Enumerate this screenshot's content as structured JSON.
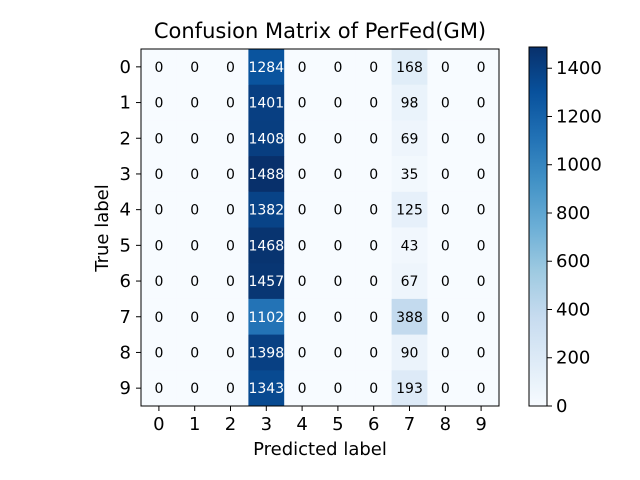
{
  "chart_data": {
    "type": "heatmap",
    "title": "Confusion Matrix of PerFed(GM)",
    "xlabel": "Predicted label",
    "ylabel": "True label",
    "x_tick_labels": [
      "0",
      "1",
      "2",
      "3",
      "4",
      "5",
      "6",
      "7",
      "8",
      "9"
    ],
    "y_tick_labels": [
      "0",
      "1",
      "2",
      "3",
      "4",
      "5",
      "6",
      "7",
      "8",
      "9"
    ],
    "matrix": [
      [
        0,
        0,
        0,
        1284,
        0,
        0,
        0,
        168,
        0,
        0
      ],
      [
        0,
        0,
        0,
        1401,
        0,
        0,
        0,
        98,
        0,
        0
      ],
      [
        0,
        0,
        0,
        1408,
        0,
        0,
        0,
        69,
        0,
        0
      ],
      [
        0,
        0,
        0,
        1488,
        0,
        0,
        0,
        35,
        0,
        0
      ],
      [
        0,
        0,
        0,
        1382,
        0,
        0,
        0,
        125,
        0,
        0
      ],
      [
        0,
        0,
        0,
        1468,
        0,
        0,
        0,
        43,
        0,
        0
      ],
      [
        0,
        0,
        0,
        1457,
        0,
        0,
        0,
        67,
        0,
        0
      ],
      [
        0,
        0,
        0,
        1102,
        0,
        0,
        0,
        388,
        0,
        0
      ],
      [
        0,
        0,
        0,
        1398,
        0,
        0,
        0,
        90,
        0,
        0
      ],
      [
        0,
        0,
        0,
        1343,
        0,
        0,
        0,
        193,
        0,
        0
      ]
    ],
    "colormap": "Blues",
    "colorbar": {
      "min": 0,
      "max": 1488,
      "ticks": [
        0,
        200,
        400,
        600,
        800,
        1000,
        1200,
        1400
      ]
    },
    "text_colors": {
      "light": "#ffffff",
      "dark": "#000000"
    },
    "grid": false
  }
}
